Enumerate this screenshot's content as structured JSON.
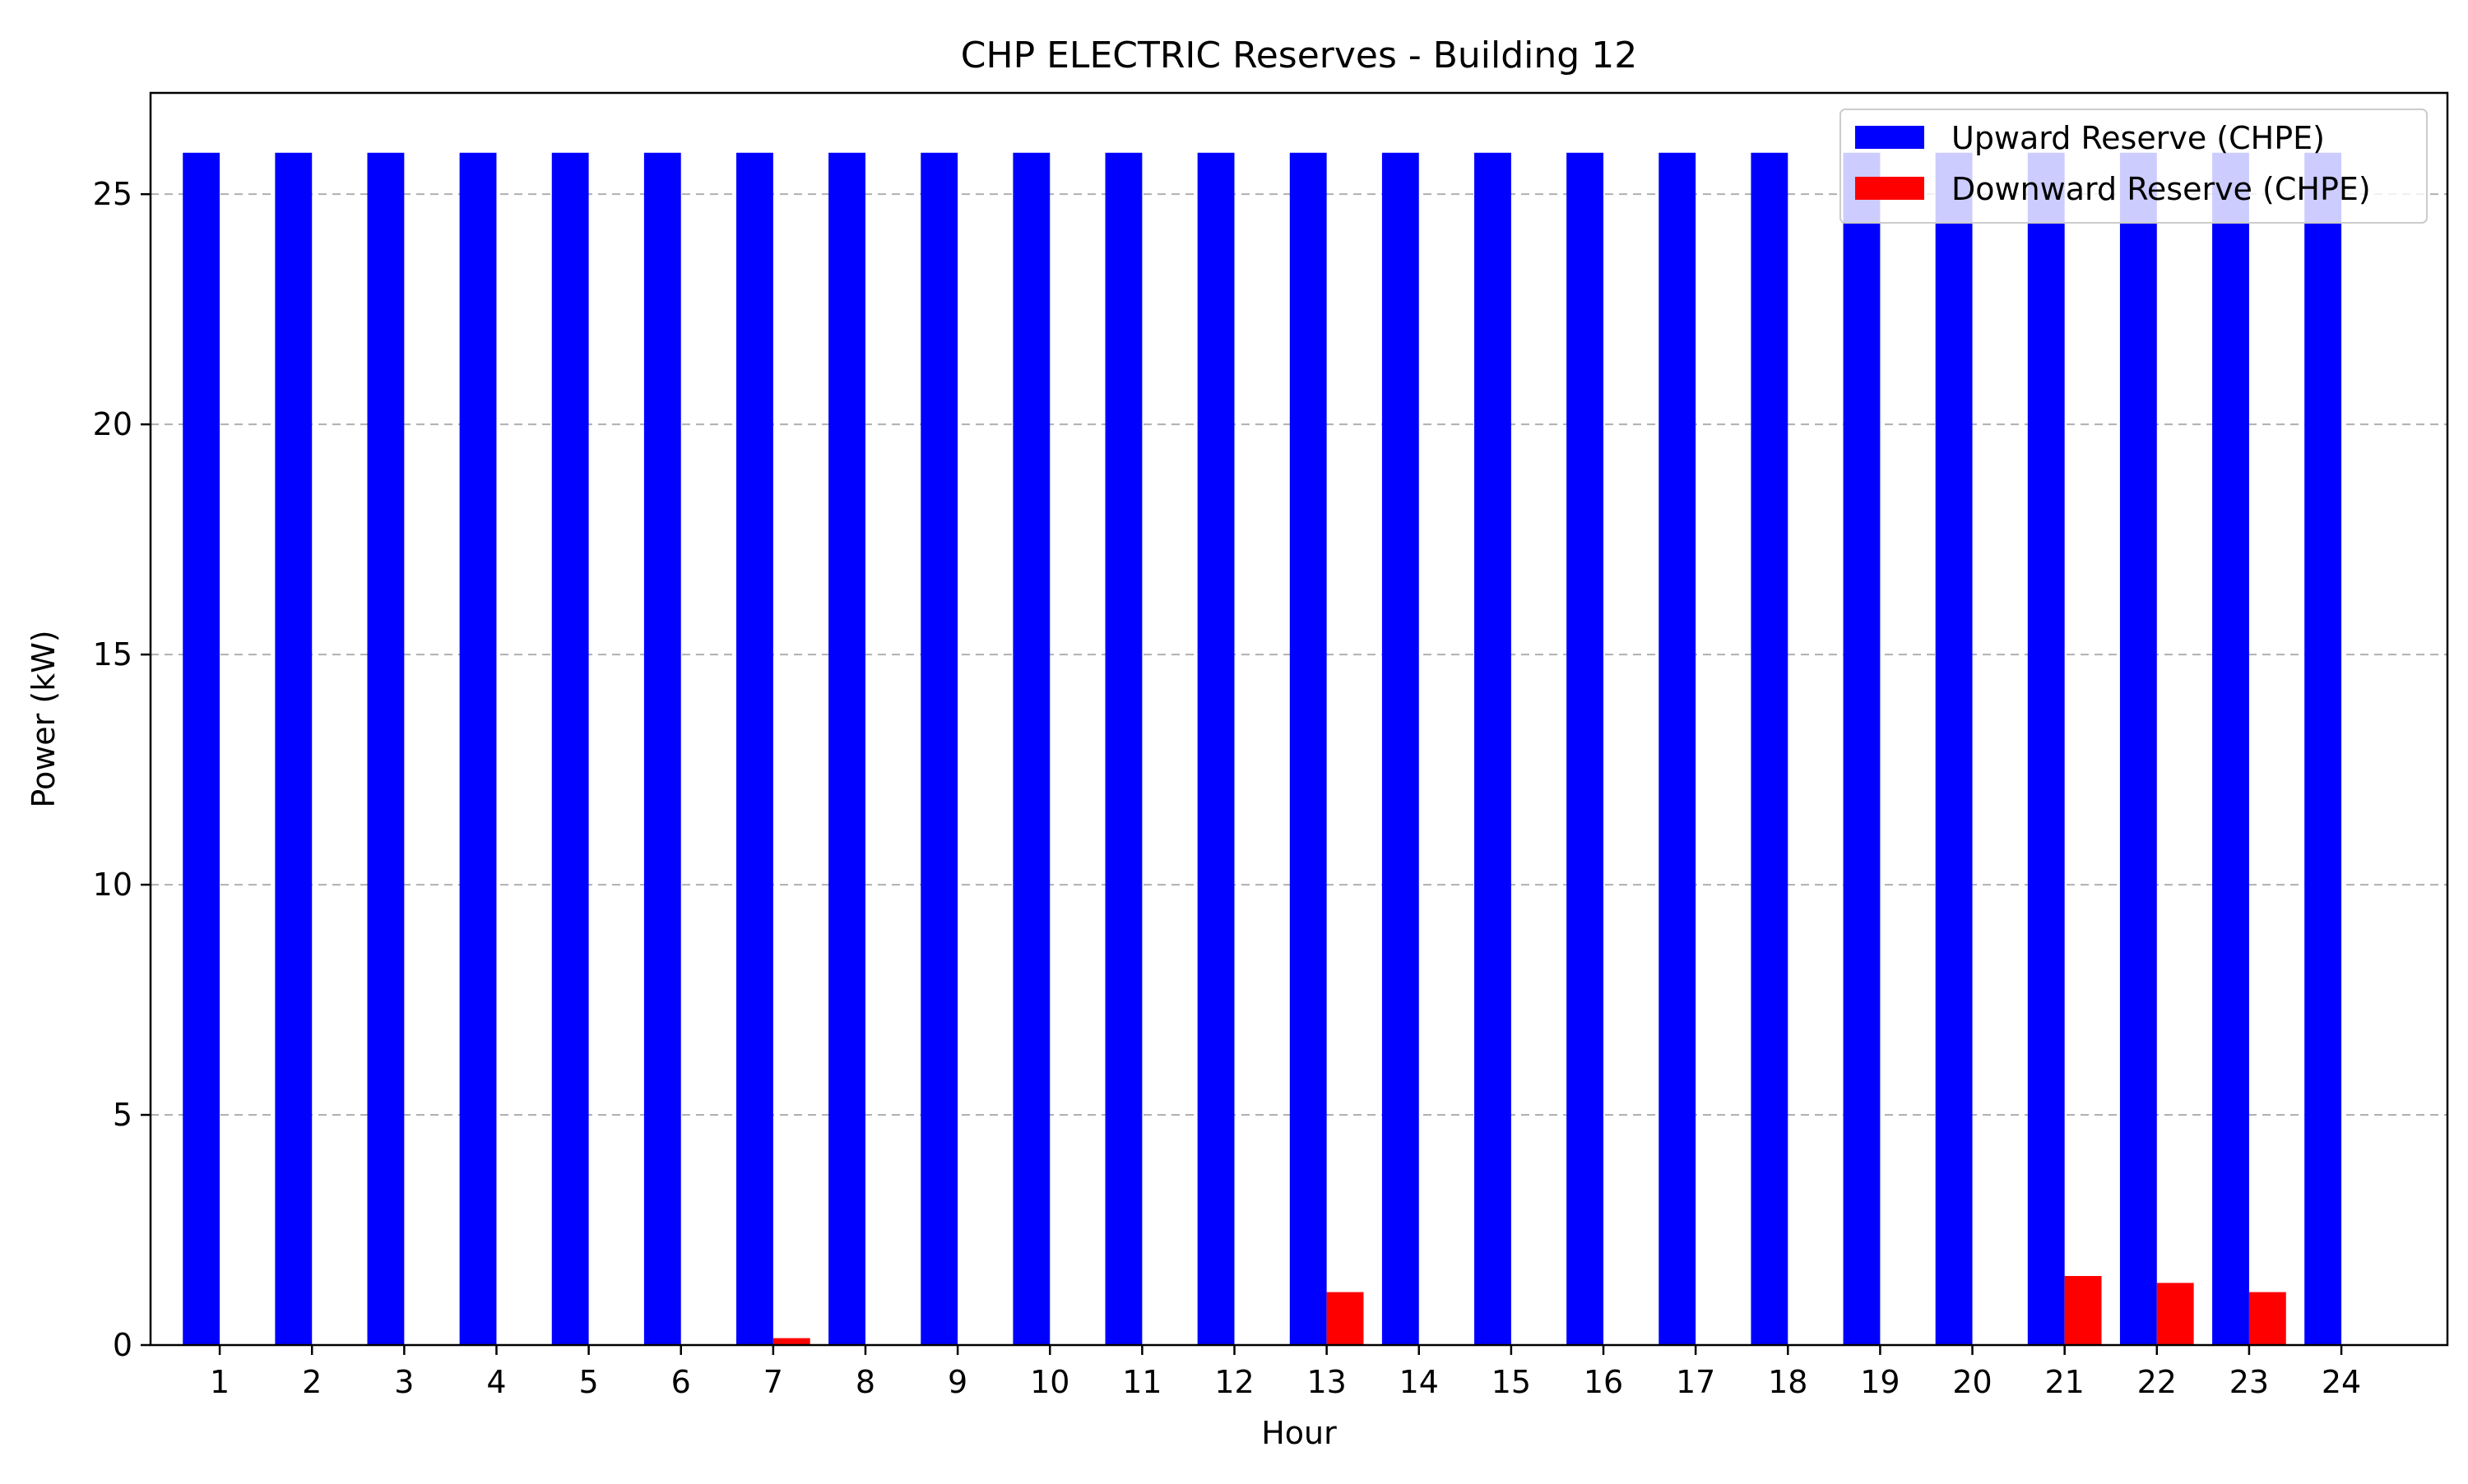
{
  "chart_data": {
    "type": "bar",
    "title": "CHP ELECTRIC Reserves - Building 12",
    "xlabel": "Hour",
    "ylabel": "Power (kW)",
    "categories": [
      "1",
      "2",
      "3",
      "4",
      "5",
      "6",
      "7",
      "8",
      "9",
      "10",
      "11",
      "12",
      "13",
      "14",
      "15",
      "16",
      "17",
      "18",
      "19",
      "20",
      "21",
      "22",
      "23",
      "24"
    ],
    "series": [
      {
        "name": "Upward Reserve (CHPE)",
        "color": "#0000ff",
        "values": [
          25.9,
          25.9,
          25.9,
          25.9,
          25.9,
          25.9,
          25.9,
          25.9,
          25.9,
          25.9,
          25.9,
          25.9,
          25.9,
          25.9,
          25.9,
          25.9,
          25.9,
          25.9,
          25.9,
          25.9,
          25.9,
          25.9,
          25.9,
          25.9
        ]
      },
      {
        "name": "Downward Reserve (CHPE)",
        "color": "#ff0000",
        "values": [
          0,
          0,
          0,
          0,
          0,
          0,
          0.15,
          0,
          0,
          0,
          0,
          0,
          1.15,
          0,
          0,
          0,
          0,
          0,
          0,
          0,
          1.5,
          1.35,
          1.15,
          0
        ]
      }
    ],
    "ylim": [
      0,
      27.2
    ],
    "yticks": [
      0,
      5,
      10,
      15,
      20,
      25
    ],
    "grid": "y-dashed",
    "legend_position": "top-right"
  }
}
